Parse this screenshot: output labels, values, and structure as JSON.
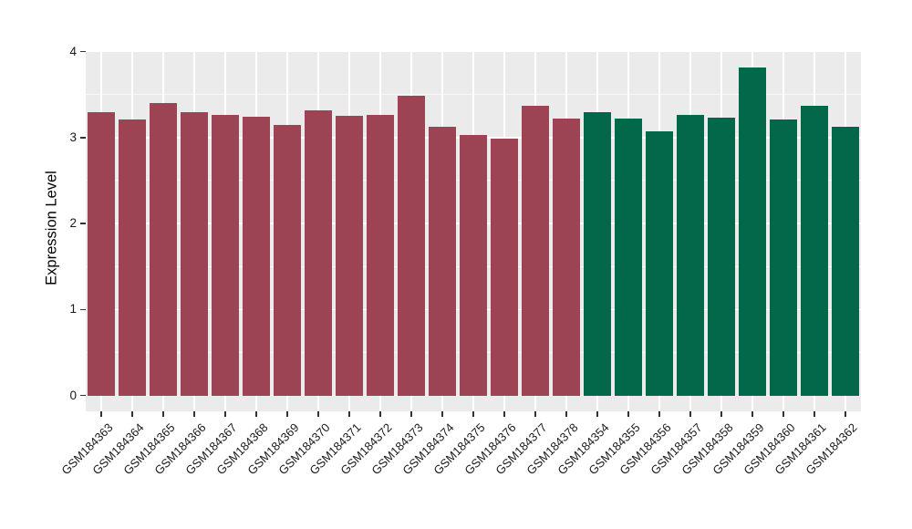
{
  "chart_data": {
    "type": "bar",
    "title": "",
    "xlabel": "",
    "ylabel": "Expression Level",
    "ylim": [
      0,
      4
    ],
    "yticks": [
      0,
      1,
      2,
      3,
      4
    ],
    "y_minor_gridlines": [
      0.5,
      1.5,
      2.5,
      3.5
    ],
    "grid": "on",
    "legend_position": "none",
    "categories": [
      "GSM184363",
      "GSM184364",
      "GSM184365",
      "GSM184366",
      "GSM184367",
      "GSM184368",
      "GSM184369",
      "GSM184370",
      "GSM184371",
      "GSM184372",
      "GSM184373",
      "GSM184374",
      "GSM184375",
      "GSM184376",
      "GSM184377",
      "GSM184378",
      "GSM184354",
      "GSM184355",
      "GSM184356",
      "GSM184357",
      "GSM184358",
      "GSM184359",
      "GSM184360",
      "GSM184361",
      "GSM184362"
    ],
    "values": [
      3.29,
      3.21,
      3.4,
      3.29,
      3.26,
      3.24,
      3.15,
      3.32,
      3.25,
      3.26,
      3.49,
      3.12,
      3.03,
      2.99,
      3.37,
      3.22,
      3.29,
      3.22,
      3.07,
      3.26,
      3.23,
      3.81,
      3.21,
      3.37,
      3.13
    ],
    "groups": [
      0,
      0,
      0,
      0,
      0,
      0,
      0,
      0,
      0,
      0,
      0,
      0,
      0,
      0,
      0,
      0,
      1,
      1,
      1,
      1,
      1,
      1,
      1,
      1,
      1
    ],
    "group_colors": [
      "#9C4453",
      "#026849"
    ],
    "panel_background": "#EBEBEB",
    "gridline_color": "#FFFFFF",
    "axis_text_color": "#1A1A1A",
    "tick_color": "#333333"
  }
}
